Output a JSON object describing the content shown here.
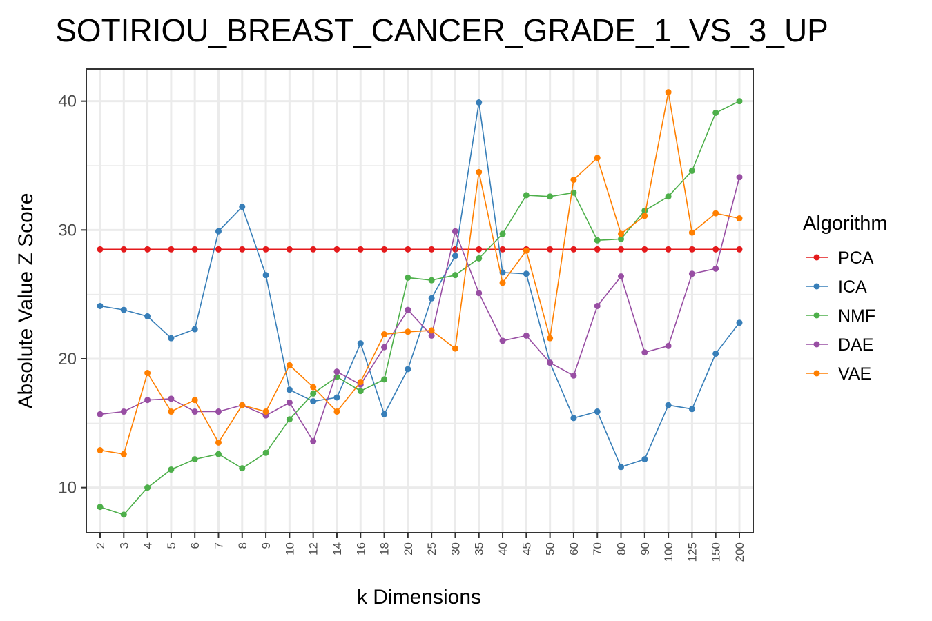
{
  "chart_data": {
    "type": "line",
    "title": "SOTIRIOU_BREAST_CANCER_GRADE_1_VS_3_UP",
    "xlabel": "k Dimensions",
    "ylabel": "Absolute Value Z Score",
    "categories": [
      "2",
      "3",
      "4",
      "5",
      "6",
      "7",
      "8",
      "9",
      "10",
      "12",
      "14",
      "16",
      "18",
      "20",
      "25",
      "30",
      "35",
      "40",
      "45",
      "50",
      "60",
      "70",
      "80",
      "90",
      "100",
      "125",
      "150",
      "200"
    ],
    "yticks": [
      10,
      20,
      30,
      40
    ],
    "ylim": [
      6.5,
      42.5
    ],
    "grid": true,
    "legend": {
      "title": "Algorithm",
      "placement": "right"
    },
    "series": [
      {
        "name": "PCA",
        "color": "#e41a1c",
        "values": [
          28.5,
          28.5,
          28.5,
          28.5,
          28.5,
          28.5,
          28.5,
          28.5,
          28.5,
          28.5,
          28.5,
          28.5,
          28.5,
          28.5,
          28.5,
          28.5,
          28.5,
          28.5,
          28.5,
          28.5,
          28.5,
          28.5,
          28.5,
          28.5,
          28.5,
          28.5,
          28.5,
          28.5
        ]
      },
      {
        "name": "ICA",
        "color": "#377eb8",
        "values": [
          24.1,
          23.8,
          23.3,
          21.6,
          22.3,
          29.9,
          31.8,
          26.5,
          17.6,
          16.7,
          17.0,
          21.2,
          15.7,
          19.2,
          24.7,
          28.0,
          39.9,
          26.7,
          26.6,
          19.7,
          15.4,
          15.9,
          11.6,
          12.2,
          16.4,
          16.1,
          20.4,
          22.8
        ]
      },
      {
        "name": "NMF",
        "color": "#4daf4a",
        "values": [
          8.5,
          7.9,
          10.0,
          11.4,
          12.2,
          12.6,
          11.5,
          12.7,
          15.3,
          17.3,
          18.6,
          17.5,
          18.4,
          26.3,
          26.1,
          26.5,
          27.8,
          29.7,
          32.7,
          32.6,
          32.9,
          29.2,
          29.3,
          31.5,
          32.6,
          34.6,
          39.1,
          40.0
        ]
      },
      {
        "name": "DAE",
        "color": "#984ea3",
        "values": [
          15.7,
          15.9,
          16.8,
          16.9,
          15.9,
          15.9,
          16.4,
          15.6,
          16.6,
          13.6,
          19.0,
          18.0,
          20.9,
          23.8,
          21.8,
          29.9,
          25.1,
          21.4,
          21.8,
          19.7,
          18.7,
          24.1,
          26.4,
          20.5,
          21.0,
          26.6,
          27.0,
          34.1
        ]
      },
      {
        "name": "VAE",
        "color": "#ff7f00",
        "values": [
          12.9,
          12.6,
          18.9,
          15.9,
          16.8,
          13.5,
          16.4,
          15.9,
          19.5,
          17.8,
          15.9,
          18.2,
          21.9,
          22.1,
          22.2,
          20.8,
          34.5,
          25.9,
          28.4,
          21.6,
          33.9,
          35.6,
          29.7,
          31.1,
          40.7,
          29.8,
          31.3,
          30.9
        ]
      }
    ]
  }
}
